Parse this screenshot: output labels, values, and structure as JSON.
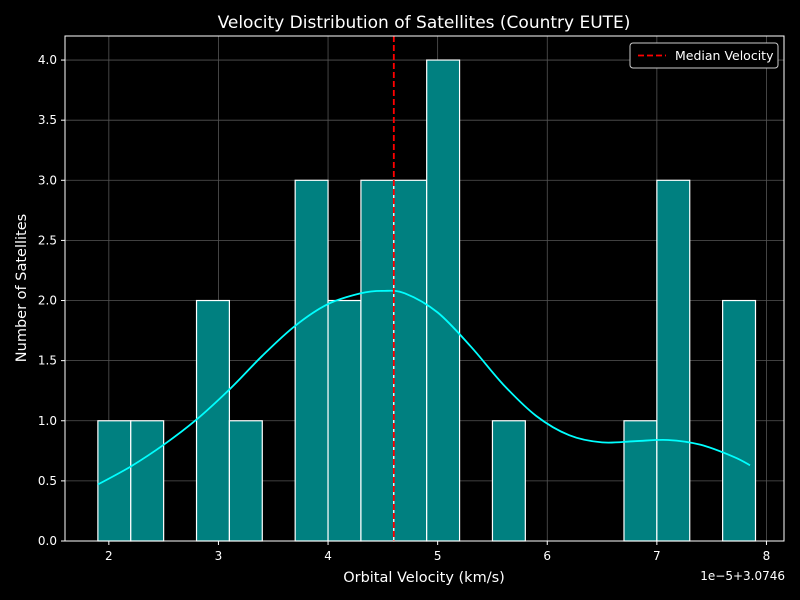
{
  "chart_data": {
    "type": "bar",
    "title": "Velocity Distribution of Satellites (Country EUTE)",
    "xlabel": "Orbital Velocity (km/s)",
    "ylabel": "Number of Satellites",
    "x_offset_label": "1e−5+3.0746",
    "xlim": [
      1.6,
      8.16
    ],
    "ylim": [
      0,
      4.2
    ],
    "xticks": [
      2,
      3,
      4,
      5,
      6,
      7,
      8
    ],
    "yticks": [
      0.0,
      0.5,
      1.0,
      1.5,
      2.0,
      2.5,
      3.0,
      3.5,
      4.0
    ],
    "grid": true,
    "legend_position": "top-right",
    "bar_color": "#008080",
    "bar_edge_color": "#ffffff",
    "bins": [
      {
        "x0": 1.9,
        "x1": 2.2,
        "count": 1
      },
      {
        "x0": 2.2,
        "x1": 2.5,
        "count": 1
      },
      {
        "x0": 2.5,
        "x1": 2.8,
        "count": 0
      },
      {
        "x0": 2.8,
        "x1": 3.1,
        "count": 2
      },
      {
        "x0": 3.1,
        "x1": 3.4,
        "count": 1
      },
      {
        "x0": 3.4,
        "x1": 3.7,
        "count": 0
      },
      {
        "x0": 3.7,
        "x1": 4.0,
        "count": 3
      },
      {
        "x0": 4.0,
        "x1": 4.3,
        "count": 2
      },
      {
        "x0": 4.3,
        "x1": 4.6,
        "count": 3
      },
      {
        "x0": 4.6,
        "x1": 4.9,
        "count": 3
      },
      {
        "x0": 4.9,
        "x1": 5.2,
        "count": 4
      },
      {
        "x0": 5.2,
        "x1": 5.5,
        "count": 0
      },
      {
        "x0": 5.5,
        "x1": 5.8,
        "count": 1
      },
      {
        "x0": 5.8,
        "x1": 6.1,
        "count": 0
      },
      {
        "x0": 6.1,
        "x1": 6.4,
        "count": 0
      },
      {
        "x0": 6.4,
        "x1": 6.7,
        "count": 0
      },
      {
        "x0": 6.7,
        "x1": 7.0,
        "count": 1
      },
      {
        "x0": 7.0,
        "x1": 7.3,
        "count": 3
      },
      {
        "x0": 7.3,
        "x1": 7.6,
        "count": 0
      },
      {
        "x0": 7.6,
        "x1": 7.9,
        "count": 2
      }
    ],
    "kde": {
      "color": "#00ffff",
      "x": [
        1.9,
        2.2,
        2.5,
        2.8,
        3.1,
        3.4,
        3.7,
        4.0,
        4.3,
        4.5,
        4.7,
        5.0,
        5.3,
        5.6,
        5.9,
        6.2,
        6.5,
        6.8,
        7.1,
        7.4,
        7.7,
        7.85
      ],
      "y": [
        0.47,
        0.62,
        0.8,
        1.01,
        1.26,
        1.54,
        1.79,
        1.97,
        2.06,
        2.08,
        2.06,
        1.9,
        1.62,
        1.3,
        1.04,
        0.88,
        0.82,
        0.83,
        0.84,
        0.8,
        0.7,
        0.63
      ]
    },
    "median": {
      "value": 4.6,
      "label": "Median Velocity",
      "color": "#ff0000"
    }
  }
}
